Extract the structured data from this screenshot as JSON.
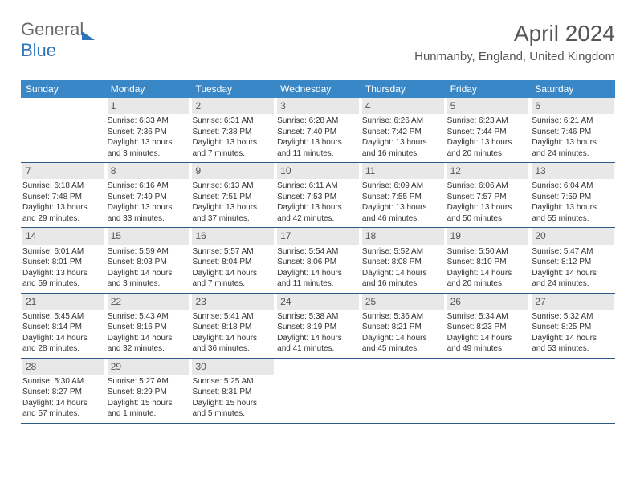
{
  "logo": {
    "text_gray": "General",
    "text_blue": "Blue"
  },
  "title": "April 2024",
  "subtitle": "Hunmanby, England, United Kingdom",
  "colors": {
    "header_bg": "#3a87c8",
    "header_text": "#ffffff",
    "daynum_bg": "#e8e8e8",
    "row_border": "#2f5a85",
    "body_text": "#333333",
    "title_text": "#555555",
    "logo_gray": "#6a6a6a",
    "logo_blue": "#2f76b8"
  },
  "day_headers": [
    "Sunday",
    "Monday",
    "Tuesday",
    "Wednesday",
    "Thursday",
    "Friday",
    "Saturday"
  ],
  "weeks": [
    [
      {
        "n": "",
        "sr": "",
        "ss": "",
        "dl1": "",
        "dl2": ""
      },
      {
        "n": "1",
        "sr": "Sunrise: 6:33 AM",
        "ss": "Sunset: 7:36 PM",
        "dl1": "Daylight: 13 hours",
        "dl2": "and 3 minutes."
      },
      {
        "n": "2",
        "sr": "Sunrise: 6:31 AM",
        "ss": "Sunset: 7:38 PM",
        "dl1": "Daylight: 13 hours",
        "dl2": "and 7 minutes."
      },
      {
        "n": "3",
        "sr": "Sunrise: 6:28 AM",
        "ss": "Sunset: 7:40 PM",
        "dl1": "Daylight: 13 hours",
        "dl2": "and 11 minutes."
      },
      {
        "n": "4",
        "sr": "Sunrise: 6:26 AM",
        "ss": "Sunset: 7:42 PM",
        "dl1": "Daylight: 13 hours",
        "dl2": "and 16 minutes."
      },
      {
        "n": "5",
        "sr": "Sunrise: 6:23 AM",
        "ss": "Sunset: 7:44 PM",
        "dl1": "Daylight: 13 hours",
        "dl2": "and 20 minutes."
      },
      {
        "n": "6",
        "sr": "Sunrise: 6:21 AM",
        "ss": "Sunset: 7:46 PM",
        "dl1": "Daylight: 13 hours",
        "dl2": "and 24 minutes."
      }
    ],
    [
      {
        "n": "7",
        "sr": "Sunrise: 6:18 AM",
        "ss": "Sunset: 7:48 PM",
        "dl1": "Daylight: 13 hours",
        "dl2": "and 29 minutes."
      },
      {
        "n": "8",
        "sr": "Sunrise: 6:16 AM",
        "ss": "Sunset: 7:49 PM",
        "dl1": "Daylight: 13 hours",
        "dl2": "and 33 minutes."
      },
      {
        "n": "9",
        "sr": "Sunrise: 6:13 AM",
        "ss": "Sunset: 7:51 PM",
        "dl1": "Daylight: 13 hours",
        "dl2": "and 37 minutes."
      },
      {
        "n": "10",
        "sr": "Sunrise: 6:11 AM",
        "ss": "Sunset: 7:53 PM",
        "dl1": "Daylight: 13 hours",
        "dl2": "and 42 minutes."
      },
      {
        "n": "11",
        "sr": "Sunrise: 6:09 AM",
        "ss": "Sunset: 7:55 PM",
        "dl1": "Daylight: 13 hours",
        "dl2": "and 46 minutes."
      },
      {
        "n": "12",
        "sr": "Sunrise: 6:06 AM",
        "ss": "Sunset: 7:57 PM",
        "dl1": "Daylight: 13 hours",
        "dl2": "and 50 minutes."
      },
      {
        "n": "13",
        "sr": "Sunrise: 6:04 AM",
        "ss": "Sunset: 7:59 PM",
        "dl1": "Daylight: 13 hours",
        "dl2": "and 55 minutes."
      }
    ],
    [
      {
        "n": "14",
        "sr": "Sunrise: 6:01 AM",
        "ss": "Sunset: 8:01 PM",
        "dl1": "Daylight: 13 hours",
        "dl2": "and 59 minutes."
      },
      {
        "n": "15",
        "sr": "Sunrise: 5:59 AM",
        "ss": "Sunset: 8:03 PM",
        "dl1": "Daylight: 14 hours",
        "dl2": "and 3 minutes."
      },
      {
        "n": "16",
        "sr": "Sunrise: 5:57 AM",
        "ss": "Sunset: 8:04 PM",
        "dl1": "Daylight: 14 hours",
        "dl2": "and 7 minutes."
      },
      {
        "n": "17",
        "sr": "Sunrise: 5:54 AM",
        "ss": "Sunset: 8:06 PM",
        "dl1": "Daylight: 14 hours",
        "dl2": "and 11 minutes."
      },
      {
        "n": "18",
        "sr": "Sunrise: 5:52 AM",
        "ss": "Sunset: 8:08 PM",
        "dl1": "Daylight: 14 hours",
        "dl2": "and 16 minutes."
      },
      {
        "n": "19",
        "sr": "Sunrise: 5:50 AM",
        "ss": "Sunset: 8:10 PM",
        "dl1": "Daylight: 14 hours",
        "dl2": "and 20 minutes."
      },
      {
        "n": "20",
        "sr": "Sunrise: 5:47 AM",
        "ss": "Sunset: 8:12 PM",
        "dl1": "Daylight: 14 hours",
        "dl2": "and 24 minutes."
      }
    ],
    [
      {
        "n": "21",
        "sr": "Sunrise: 5:45 AM",
        "ss": "Sunset: 8:14 PM",
        "dl1": "Daylight: 14 hours",
        "dl2": "and 28 minutes."
      },
      {
        "n": "22",
        "sr": "Sunrise: 5:43 AM",
        "ss": "Sunset: 8:16 PM",
        "dl1": "Daylight: 14 hours",
        "dl2": "and 32 minutes."
      },
      {
        "n": "23",
        "sr": "Sunrise: 5:41 AM",
        "ss": "Sunset: 8:18 PM",
        "dl1": "Daylight: 14 hours",
        "dl2": "and 36 minutes."
      },
      {
        "n": "24",
        "sr": "Sunrise: 5:38 AM",
        "ss": "Sunset: 8:19 PM",
        "dl1": "Daylight: 14 hours",
        "dl2": "and 41 minutes."
      },
      {
        "n": "25",
        "sr": "Sunrise: 5:36 AM",
        "ss": "Sunset: 8:21 PM",
        "dl1": "Daylight: 14 hours",
        "dl2": "and 45 minutes."
      },
      {
        "n": "26",
        "sr": "Sunrise: 5:34 AM",
        "ss": "Sunset: 8:23 PM",
        "dl1": "Daylight: 14 hours",
        "dl2": "and 49 minutes."
      },
      {
        "n": "27",
        "sr": "Sunrise: 5:32 AM",
        "ss": "Sunset: 8:25 PM",
        "dl1": "Daylight: 14 hours",
        "dl2": "and 53 minutes."
      }
    ],
    [
      {
        "n": "28",
        "sr": "Sunrise: 5:30 AM",
        "ss": "Sunset: 8:27 PM",
        "dl1": "Daylight: 14 hours",
        "dl2": "and 57 minutes."
      },
      {
        "n": "29",
        "sr": "Sunrise: 5:27 AM",
        "ss": "Sunset: 8:29 PM",
        "dl1": "Daylight: 15 hours",
        "dl2": "and 1 minute."
      },
      {
        "n": "30",
        "sr": "Sunrise: 5:25 AM",
        "ss": "Sunset: 8:31 PM",
        "dl1": "Daylight: 15 hours",
        "dl2": "and 5 minutes."
      },
      {
        "n": "",
        "sr": "",
        "ss": "",
        "dl1": "",
        "dl2": ""
      },
      {
        "n": "",
        "sr": "",
        "ss": "",
        "dl1": "",
        "dl2": ""
      },
      {
        "n": "",
        "sr": "",
        "ss": "",
        "dl1": "",
        "dl2": ""
      },
      {
        "n": "",
        "sr": "",
        "ss": "",
        "dl1": "",
        "dl2": ""
      }
    ]
  ]
}
